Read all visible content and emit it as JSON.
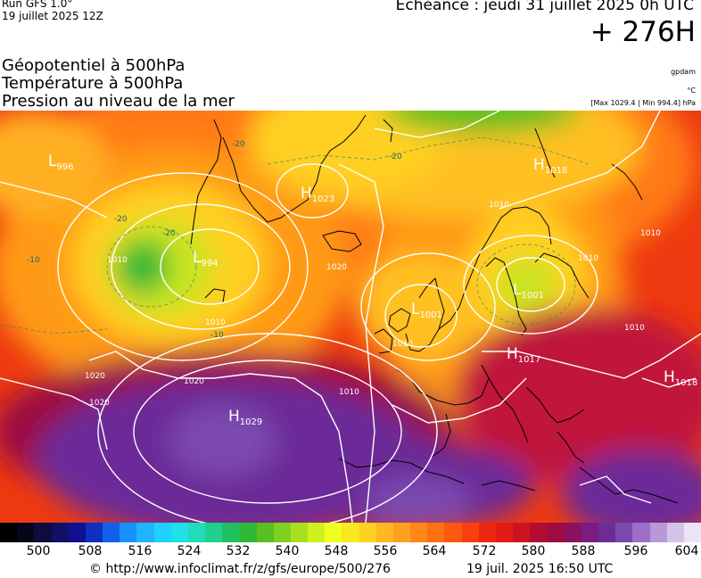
{
  "header": {
    "run": "Run GFS 1.0°",
    "run_date": "19 juillet 2025 12Z",
    "echeance": "Echéance : jeudi 31 juillet 2025 0h UTC",
    "hours": "+ 276H"
  },
  "titles": {
    "line1": "Géopotentiel à 500hPa",
    "line2": "Température à 500hPa",
    "line3": "Pression au niveau de la mer"
  },
  "units": {
    "geopot": "gpdam",
    "temp": "°C",
    "pressure": "[Max 1029.4 | Min 994.4] hPa"
  },
  "map": {
    "pressure_centers": [
      {
        "type": "L",
        "value": "996"
      },
      {
        "type": "H",
        "value": "1023"
      },
      {
        "type": "H",
        "value": "1018"
      },
      {
        "type": "L",
        "value": "994"
      },
      {
        "type": "L",
        "value": "1001"
      },
      {
        "type": "L",
        "value": "1001"
      },
      {
        "type": "H",
        "value": "1017"
      },
      {
        "type": "H",
        "value": "1018"
      },
      {
        "type": "H",
        "value": "1029"
      }
    ],
    "isobar_labels": [
      "1010",
      "1010",
      "1020",
      "1010",
      "1020",
      "1020",
      "1010",
      "1010",
      "1010",
      "1010",
      "1010",
      "1020"
    ],
    "temp_labels": [
      "-20",
      "-20",
      "-20",
      "-20",
      "-10",
      "-10"
    ]
  },
  "scale": {
    "ticks": [
      "500",
      "508",
      "516",
      "524",
      "532",
      "540",
      "548",
      "556",
      "564",
      "572",
      "580",
      "588",
      "596",
      "604"
    ],
    "colors": [
      "#000000",
      "#06061a",
      "#0c0c3e",
      "#101066",
      "#101090",
      "#1030c0",
      "#1060e8",
      "#1890ff",
      "#20b4ff",
      "#20d0ff",
      "#20e0e8",
      "#20dcb8",
      "#20d090",
      "#20c060",
      "#30b838",
      "#58c020",
      "#80d020",
      "#a8e020",
      "#d0f020",
      "#f0ff20",
      "#f8e820",
      "#ffd020",
      "#ffb820",
      "#ffa020",
      "#ff8818",
      "#ff7010",
      "#ff5810",
      "#f84010",
      "#ee2810",
      "#e01c14",
      "#cc1420",
      "#b40c30",
      "#9c0c40",
      "#8c1060",
      "#7c1c80",
      "#6c2c98",
      "#7c48b0",
      "#9c70c8",
      "#b898d8",
      "#d4c4e8",
      "#ece4f4"
    ]
  },
  "footer": {
    "copyright": "© http://www.infoclimat.fr/z/gfs/europe/500/276",
    "generated": "19 juil. 2025 16:50 UTC"
  }
}
